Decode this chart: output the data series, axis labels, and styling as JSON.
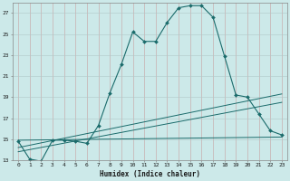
{
  "xlabel": "Humidex (Indice chaleur)",
  "background_color": "#cce9e9",
  "grid_color": "#b0c8c8",
  "line_color": "#1a6b6b",
  "xlim": [
    -0.5,
    23.5
  ],
  "ylim": [
    13,
    28
  ],
  "yticks": [
    13,
    15,
    17,
    19,
    21,
    23,
    25,
    27
  ],
  "xticks": [
    0,
    1,
    2,
    3,
    4,
    5,
    6,
    7,
    8,
    9,
    10,
    11,
    12,
    13,
    14,
    15,
    16,
    17,
    18,
    19,
    20,
    21,
    22,
    23
  ],
  "series1_x": [
    0,
    1,
    2,
    3,
    4,
    5,
    6,
    7,
    8,
    9,
    10,
    11,
    12,
    13,
    14,
    15,
    16,
    17,
    18,
    19,
    20,
    21,
    22,
    23
  ],
  "series1_y": [
    14.8,
    13.1,
    12.9,
    14.9,
    14.9,
    14.8,
    14.6,
    16.3,
    19.4,
    22.1,
    25.2,
    24.3,
    24.3,
    26.1,
    27.5,
    27.7,
    27.7,
    26.6,
    22.9,
    19.2,
    19.0,
    17.4,
    15.8,
    15.4
  ],
  "series2_x": [
    0,
    23
  ],
  "series2_y": [
    14.2,
    19.3
  ],
  "series3_x": [
    0,
    23
  ],
  "series3_y": [
    13.8,
    18.5
  ],
  "series4_x": [
    0,
    23
  ],
  "series4_y": [
    14.9,
    15.2
  ]
}
